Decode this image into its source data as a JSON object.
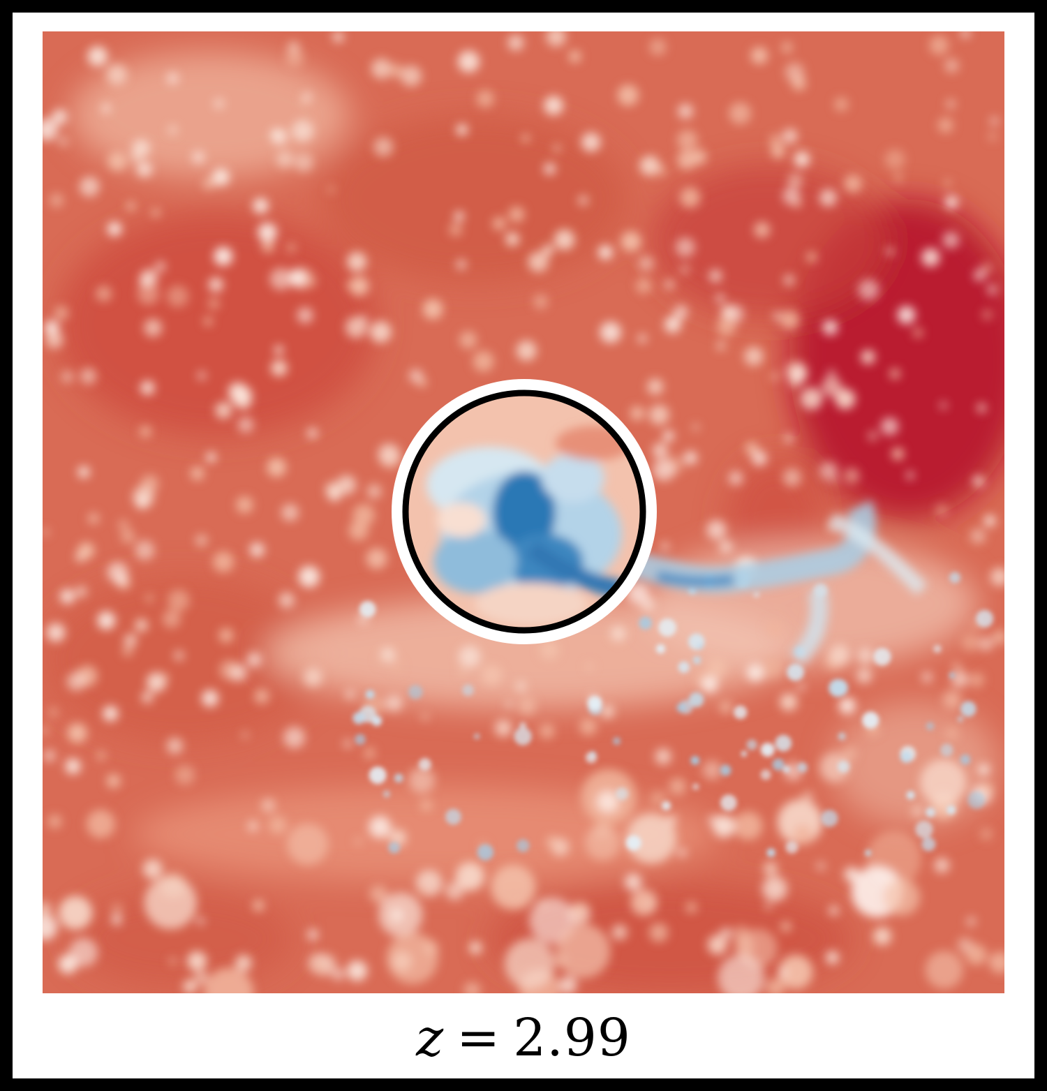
{
  "image": {
    "description_colors": {
      "hot": "#b4102b",
      "warm": "#d96b55",
      "light": "#f6c6ad",
      "neutral": "#f7f7f7",
      "cool_light": "#d1e5f0",
      "cool": "#4393c3",
      "cold": "#1f6fb0",
      "frame": "#000000",
      "ring_outer": "#ffffff",
      "ring_inner": "#000000"
    },
    "colormap": "RdBu"
  },
  "caption": {
    "variable": "z",
    "equals": "=",
    "value": "2.99"
  }
}
